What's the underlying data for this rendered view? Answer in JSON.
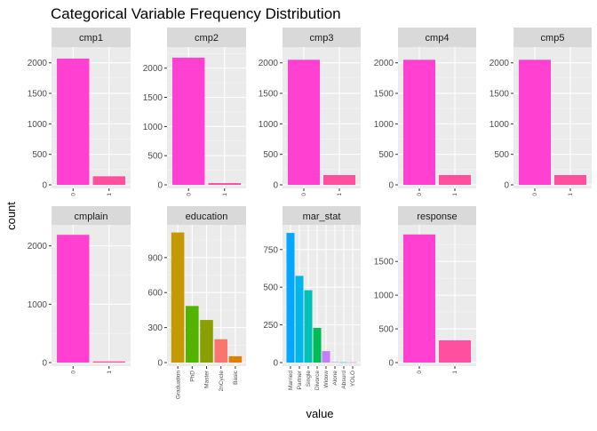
{
  "chart_data": {
    "type": "bar",
    "title": "Categorical Variable Frequency Distribution",
    "xlabel": "value",
    "ylabel": "count",
    "grid": true,
    "legend": "none",
    "facets": [
      {
        "name": "cmp1",
        "categories": [
          "0",
          "1"
        ],
        "values": [
          2070,
          140
        ],
        "colors": [
          "#FF40D0",
          "#FF4F9E"
        ],
        "yticks": [
          0,
          500,
          1000,
          1500,
          2000
        ],
        "ylim": [
          0,
          2200
        ]
      },
      {
        "name": "cmp2",
        "categories": [
          "0",
          "1"
        ],
        "values": [
          2180,
          30
        ],
        "colors": [
          "#FF40D0",
          "#FF4F9E"
        ],
        "yticks": [
          0,
          500,
          1000,
          1500,
          2000
        ],
        "ylim": [
          0,
          2300
        ]
      },
      {
        "name": "cmp3",
        "categories": [
          "0",
          "1"
        ],
        "values": [
          2050,
          160
        ],
        "colors": [
          "#FF40D0",
          "#FF4F9E"
        ],
        "yticks": [
          0,
          500,
          1000,
          1500,
          2000
        ],
        "ylim": [
          0,
          2200
        ]
      },
      {
        "name": "cmp4",
        "categories": [
          "0",
          "1"
        ],
        "values": [
          2050,
          160
        ],
        "colors": [
          "#FF40D0",
          "#FF4F9E"
        ],
        "yticks": [
          0,
          500,
          1000,
          1500,
          2000
        ],
        "ylim": [
          0,
          2200
        ]
      },
      {
        "name": "cmp5",
        "categories": [
          "0",
          "1"
        ],
        "values": [
          2050,
          160
        ],
        "colors": [
          "#FF40D0",
          "#FF4F9E"
        ],
        "yticks": [
          0,
          500,
          1000,
          1500,
          2000
        ],
        "ylim": [
          0,
          2200
        ]
      },
      {
        "name": "cmplain",
        "categories": [
          "0",
          "1"
        ],
        "values": [
          2190,
          20
        ],
        "colors": [
          "#FF40D0",
          "#FF4F9E"
        ],
        "yticks": [
          0,
          1000,
          2000
        ],
        "minor_ticks": [
          500,
          1500
        ],
        "ylim": [
          0,
          2300
        ]
      },
      {
        "name": "education",
        "categories": [
          "Graduation",
          "PhD",
          "Master",
          "2nCycle",
          "Basic"
        ],
        "values": [
          1115,
          485,
          365,
          200,
          54
        ],
        "colors": [
          "#C49A00",
          "#53B400",
          "#8A9F02",
          "#F8766D",
          "#E27F00"
        ],
        "yticks": [
          0,
          300,
          600,
          900
        ],
        "ylim": [
          0,
          1150
        ]
      },
      {
        "name": "mar_stat",
        "categories": [
          "Married",
          "Partner",
          "Single",
          "Divorce",
          "Widow",
          "Alone",
          "Absurd",
          "YOLO"
        ],
        "values": [
          860,
          575,
          480,
          230,
          76,
          3,
          2,
          2
        ],
        "colors": [
          "#00A9FF",
          "#00B6EB",
          "#00C0B8",
          "#00BC56",
          "#C77CFF",
          "#8C9FFF",
          "#00BFC4",
          "#E76BF3"
        ],
        "yticks": [
          0,
          250,
          500,
          750
        ],
        "ylim": [
          0,
          890
        ]
      },
      {
        "name": "response",
        "categories": [
          "0",
          "1"
        ],
        "values": [
          1900,
          330
        ],
        "colors": [
          "#FF40D0",
          "#FF4F9E"
        ],
        "yticks": [
          0,
          500,
          1000,
          1500
        ],
        "ylim": [
          0,
          1990
        ]
      }
    ]
  }
}
